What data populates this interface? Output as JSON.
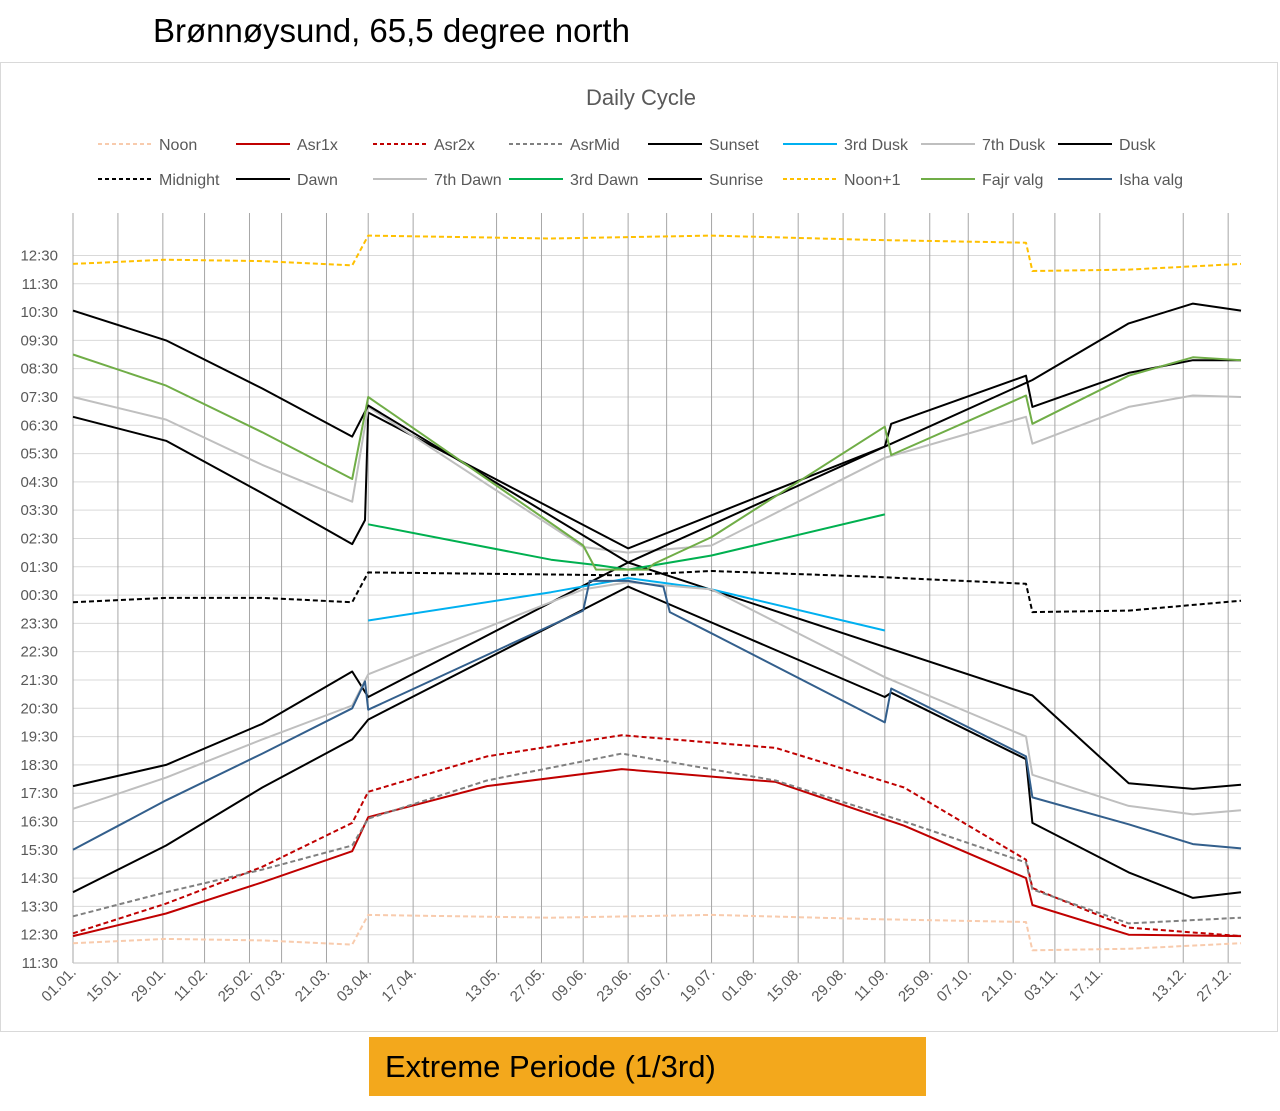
{
  "page": {
    "title": "Brønnøysund, 65,5 degree north",
    "caption": "Extreme Periode (1/3rd)",
    "caption_color": "#f3a81c"
  },
  "chart_data": {
    "type": "line",
    "title": "Daily Cycle",
    "xlabel": "",
    "ylabel": "",
    "legend_position": "top",
    "grid": true,
    "y_axis": {
      "unit": "hours since 11:30",
      "range": [
        0,
        26.5
      ],
      "tick_labels": [
        "11:30",
        "12:30",
        "13:30",
        "14:30",
        "15:30",
        "16:30",
        "17:30",
        "18:30",
        "19:30",
        "20:30",
        "21:30",
        "22:30",
        "23:30",
        "00:30",
        "01:30",
        "02:30",
        "03:30",
        "04:30",
        "05:30",
        "06:30",
        "07:30",
        "08:30",
        "09:30",
        "10:30",
        "11:30",
        "12:30"
      ],
      "tick_values": [
        0,
        1,
        2,
        3,
        4,
        5,
        6,
        7,
        8,
        9,
        10,
        11,
        12,
        13,
        14,
        15,
        16,
        17,
        18,
        19,
        20,
        21,
        22,
        23,
        24,
        25
      ]
    },
    "x_axis": {
      "unit": "day of year",
      "range": [
        1,
        365
      ],
      "tick_labels": [
        "01.01.",
        "15.01.",
        "29.01.",
        "11.02.",
        "25.02.",
        "07.03.",
        "21.03.",
        "03.04.",
        "17.04.",
        "13.05.",
        "27.05.",
        "09.06.",
        "23.06.",
        "05.07.",
        "19.07.",
        "01.08.",
        "15.08.",
        "29.08.",
        "11.09.",
        "25.09.",
        "07.10.",
        "21.10.",
        "03.11.",
        "17.11.",
        "13.12.",
        "27.12."
      ],
      "tick_days": [
        1,
        15,
        29,
        42,
        56,
        66,
        80,
        93,
        107,
        133,
        147,
        160,
        174,
        186,
        200,
        213,
        227,
        241,
        254,
        268,
        280,
        294,
        307,
        321,
        347,
        361
      ]
    },
    "series": [
      {
        "name": "Noon",
        "color": "#f8cbad",
        "dash": "dashed",
        "x": [
          1,
          30,
          60,
          88,
          93,
          150,
          200,
          250,
          298,
          300,
          330,
          365
        ],
        "y": [
          0.7,
          0.85,
          0.8,
          0.65,
          1.7,
          1.6,
          1.7,
          1.55,
          1.45,
          0.45,
          0.5,
          0.7
        ]
      },
      {
        "name": "Asr1x",
        "color": "#c00000",
        "dash": "solid",
        "x": [
          1,
          30,
          60,
          88,
          93,
          130,
          172,
          220,
          260,
          298,
          300,
          330,
          365
        ],
        "y": [
          0.95,
          1.75,
          2.85,
          3.95,
          5.15,
          6.25,
          6.85,
          6.4,
          4.85,
          3.0,
          2.05,
          1.0,
          0.95
        ]
      },
      {
        "name": "Asr2x",
        "color": "#c00000",
        "dash": "dashed",
        "x": [
          1,
          30,
          60,
          88,
          93,
          130,
          172,
          220,
          260,
          298,
          300,
          330,
          365
        ],
        "y": [
          1.05,
          2.1,
          3.4,
          4.95,
          6.05,
          7.3,
          8.05,
          7.6,
          6.2,
          3.65,
          2.65,
          1.25,
          0.95
        ]
      },
      {
        "name": "AsrMid",
        "color": "#808080",
        "dash": "dashed",
        "x": [
          1,
          30,
          60,
          88,
          93,
          130,
          172,
          220,
          260,
          298,
          300,
          330,
          365
        ],
        "y": [
          1.65,
          2.5,
          3.3,
          4.15,
          5.1,
          6.45,
          7.4,
          6.45,
          5.0,
          3.55,
          2.6,
          1.4,
          1.6
        ]
      },
      {
        "name": "Sunset",
        "color": "#000000",
        "dash": "solid",
        "x": [
          1,
          30,
          60,
          88,
          93,
          174,
          300,
          330,
          350,
          365
        ],
        "y": [
          6.25,
          7.0,
          8.45,
          10.3,
          9.4,
          14.15,
          9.45,
          6.35,
          6.15,
          6.3
        ]
      },
      {
        "name": "3rd Dusk",
        "color": "#00b0f0",
        "dash": "solid",
        "x": [
          93,
          150,
          172,
          174,
          200,
          254
        ],
        "y": [
          12.1,
          13.1,
          13.55,
          13.6,
          13.2,
          11.75
        ]
      },
      {
        "name": "7th Dusk",
        "color": "#bfbfbf",
        "dash": "solid",
        "x": [
          1,
          30,
          60,
          88,
          93,
          160,
          174,
          200,
          254,
          298,
          300,
          330,
          350,
          365
        ],
        "y": [
          5.45,
          6.55,
          7.9,
          9.1,
          10.2,
          13.2,
          13.45,
          13.2,
          10.1,
          8.0,
          6.65,
          5.55,
          5.25,
          5.4
        ]
      },
      {
        "name": "Dusk",
        "color": "#000000",
        "dash": "solid",
        "x": [
          1,
          30,
          60,
          88,
          93,
          174,
          254,
          256,
          298,
          300,
          330,
          350,
          365
        ],
        "y": [
          2.5,
          4.15,
          6.2,
          7.9,
          8.6,
          13.3,
          9.4,
          9.55,
          7.2,
          4.95,
          3.2,
          2.3,
          2.5
        ]
      },
      {
        "name": "Midnight",
        "color": "#000000",
        "dash": "dashed",
        "x": [
          1,
          30,
          60,
          88,
          93,
          172,
          200,
          250,
          298,
          300,
          330,
          365
        ],
        "y": [
          12.75,
          12.9,
          12.9,
          12.75,
          13.8,
          13.7,
          13.85,
          13.65,
          13.4,
          12.4,
          12.45,
          12.8
        ]
      },
      {
        "name": "Dawn",
        "color": "#000000",
        "dash": "solid",
        "x": [
          1,
          30,
          60,
          88,
          92,
          93,
          174,
          254,
          256,
          298,
          300,
          330,
          350,
          365
        ],
        "y": [
          19.3,
          18.45,
          16.6,
          14.8,
          15.65,
          19.45,
          14.65,
          18.25,
          19.05,
          20.75,
          19.65,
          20.85,
          21.3,
          21.3
        ]
      },
      {
        "name": "7th Dawn",
        "color": "#bfbfbf",
        "dash": "solid",
        "x": [
          1,
          30,
          60,
          88,
          93,
          160,
          174,
          200,
          254,
          298,
          300,
          330,
          350,
          365
        ],
        "y": [
          20.0,
          19.2,
          17.6,
          16.3,
          19.65,
          14.7,
          14.5,
          14.75,
          17.85,
          19.3,
          18.35,
          19.65,
          20.05,
          20.0
        ]
      },
      {
        "name": "3rd Dawn",
        "color": "#00b050",
        "dash": "solid",
        "x": [
          93,
          150,
          165,
          174,
          200,
          254
        ],
        "y": [
          15.5,
          14.25,
          14.05,
          13.9,
          14.4,
          15.85
        ]
      },
      {
        "name": "Sunrise",
        "color": "#000000",
        "dash": "solid",
        "x": [
          1,
          30,
          60,
          88,
          93,
          174,
          300,
          330,
          350,
          365
        ],
        "y": [
          23.05,
          22.0,
          20.3,
          18.6,
          19.7,
          14.15,
          20.6,
          22.6,
          23.3,
          23.05
        ]
      },
      {
        "name": "Noon+1",
        "color": "#ffc000",
        "dash": "dashed",
        "x": [
          1,
          30,
          60,
          88,
          93,
          150,
          200,
          250,
          298,
          300,
          330,
          365
        ],
        "y": [
          24.7,
          24.85,
          24.8,
          24.65,
          25.7,
          25.6,
          25.7,
          25.55,
          25.45,
          24.45,
          24.5,
          24.7
        ]
      },
      {
        "name": "Fajr valg",
        "color": "#70ad47",
        "dash": "solid",
        "x": [
          1,
          30,
          60,
          88,
          93,
          160,
          164,
          174,
          180,
          182,
          200,
          254,
          256,
          298,
          300,
          330,
          350,
          365
        ],
        "y": [
          21.5,
          20.4,
          18.75,
          17.1,
          20.0,
          14.75,
          13.9,
          13.9,
          13.9,
          14.1,
          15.05,
          18.95,
          17.95,
          20.05,
          19.05,
          20.75,
          21.4,
          21.3
        ]
      },
      {
        "name": "Isha valg",
        "color": "#335f8c",
        "dash": "solid",
        "x": [
          1,
          30,
          60,
          88,
          92,
          93,
          160,
          162,
          174,
          185,
          187,
          200,
          254,
          256,
          298,
          300,
          330,
          350,
          365
        ],
        "y": [
          4.0,
          5.75,
          7.4,
          9.0,
          9.95,
          8.95,
          12.45,
          13.5,
          13.5,
          13.3,
          12.4,
          11.65,
          8.5,
          9.7,
          7.3,
          5.85,
          4.9,
          4.2,
          4.05
        ]
      }
    ]
  }
}
